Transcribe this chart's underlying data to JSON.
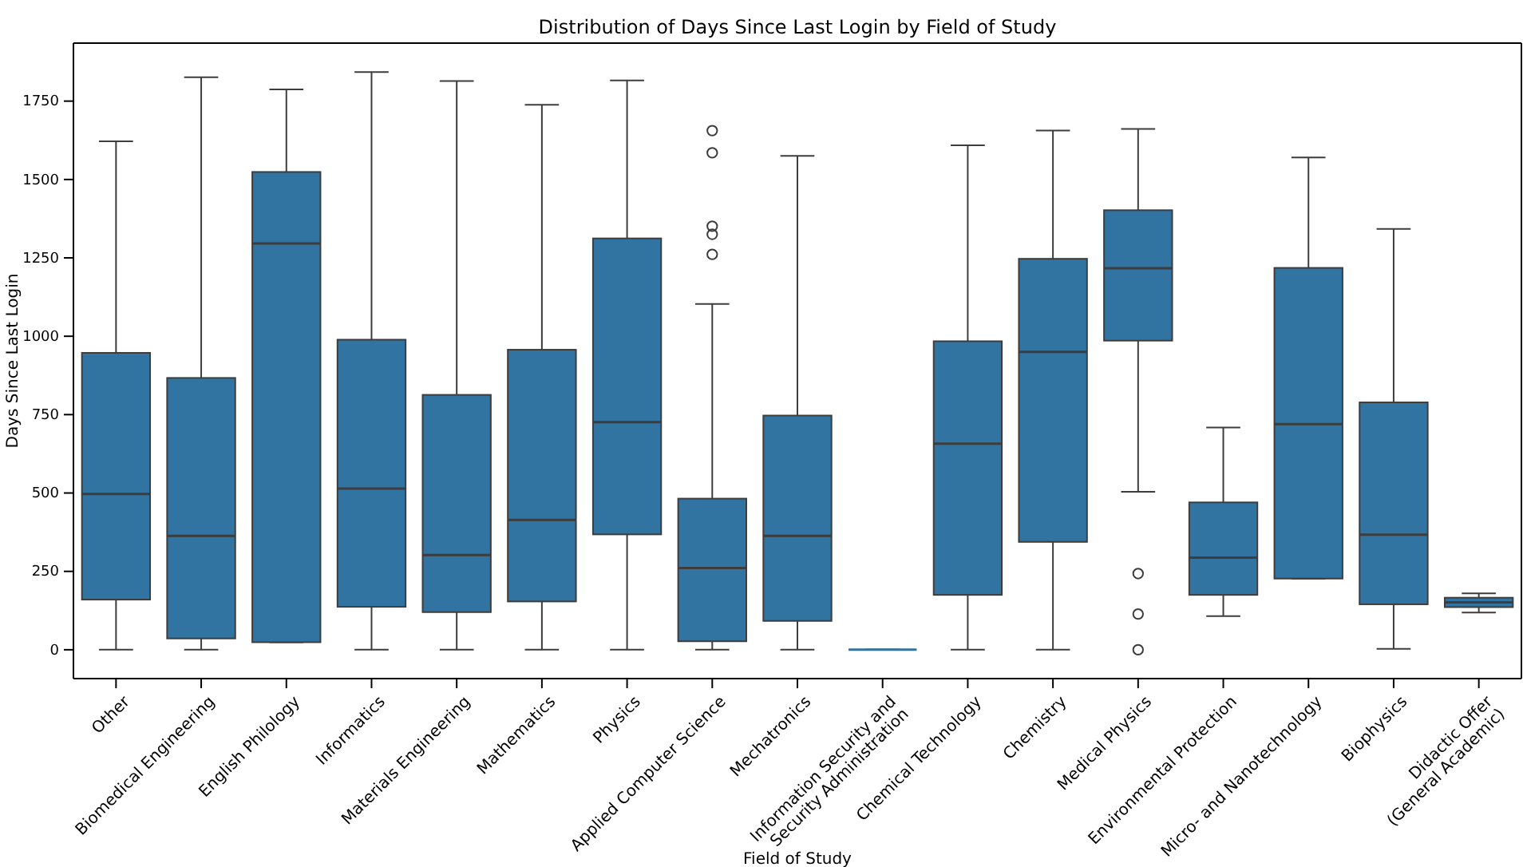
{
  "chart_data": {
    "type": "box",
    "title": "Distribution of Days Since Last Login by Field of Study",
    "xlabel": "Field of Study",
    "ylabel": "Days Since Last Login",
    "categories": [
      "Other",
      "Biomedical Engineering",
      "English Philology",
      "Informatics",
      "Materials Engineering",
      "Mathematics",
      "Physics",
      "Applied Computer Science",
      "Mechatronics",
      "Information Security and\nSecurity Administration",
      "Chemical Technology",
      "Chemistry",
      "Medical Physics",
      "Environmental Protection",
      "Micro- and Nanotechnology",
      "Biophysics",
      "Didactic Offer\n(General Academic)"
    ],
    "color": "#3274a1",
    "ylim": [
      -92,
      1935
    ],
    "yticks": [
      0,
      250,
      500,
      750,
      1000,
      1250,
      1500,
      1750
    ],
    "grid": false,
    "legend": false,
    "marker": "circle",
    "boxes": [
      {
        "low": 0,
        "q1": 160,
        "median": 497,
        "q3": 947,
        "high": 1622
      },
      {
        "low": 0,
        "q1": 36,
        "median": 363,
        "q3": 867,
        "high": 1826
      },
      {
        "low": 24,
        "q1": 24,
        "median": 1296,
        "q3": 1524,
        "high": 1787
      },
      {
        "low": 0,
        "q1": 137,
        "median": 514,
        "q3": 989,
        "high": 1843
      },
      {
        "low": 0,
        "q1": 120,
        "median": 302,
        "q3": 813,
        "high": 1814
      },
      {
        "low": 0,
        "q1": 154,
        "median": 414,
        "q3": 957,
        "high": 1738
      },
      {
        "low": 0,
        "q1": 368,
        "median": 726,
        "q3": 1312,
        "high": 1816
      },
      {
        "low": 0,
        "q1": 27,
        "median": 261,
        "q3": 482,
        "high": 1103,
        "outliers": [
          1261,
          1325,
          1351,
          1585,
          1656
        ]
      },
      {
        "low": 0,
        "q1": 92,
        "median": 363,
        "q3": 747,
        "high": 1575
      },
      {
        "low": 0,
        "q1": 0,
        "median": 0,
        "q3": 0,
        "high": 0
      },
      {
        "low": 0,
        "q1": 175,
        "median": 657,
        "q3": 984,
        "high": 1609
      },
      {
        "low": 0,
        "q1": 344,
        "median": 950,
        "q3": 1247,
        "high": 1656
      },
      {
        "low": 504,
        "q1": 986,
        "median": 1217,
        "q3": 1402,
        "high": 1661,
        "outliers": [
          0,
          114,
          243
        ]
      },
      {
        "low": 107,
        "q1": 175,
        "median": 294,
        "q3": 470,
        "high": 709
      },
      {
        "low": 227,
        "q1": 227,
        "median": 720,
        "q3": 1218,
        "high": 1570
      },
      {
        "low": 3,
        "q1": 145,
        "median": 367,
        "q3": 789,
        "high": 1342
      },
      {
        "low": 119,
        "q1": 136,
        "median": 151,
        "q3": 166,
        "high": 180
      }
    ]
  }
}
